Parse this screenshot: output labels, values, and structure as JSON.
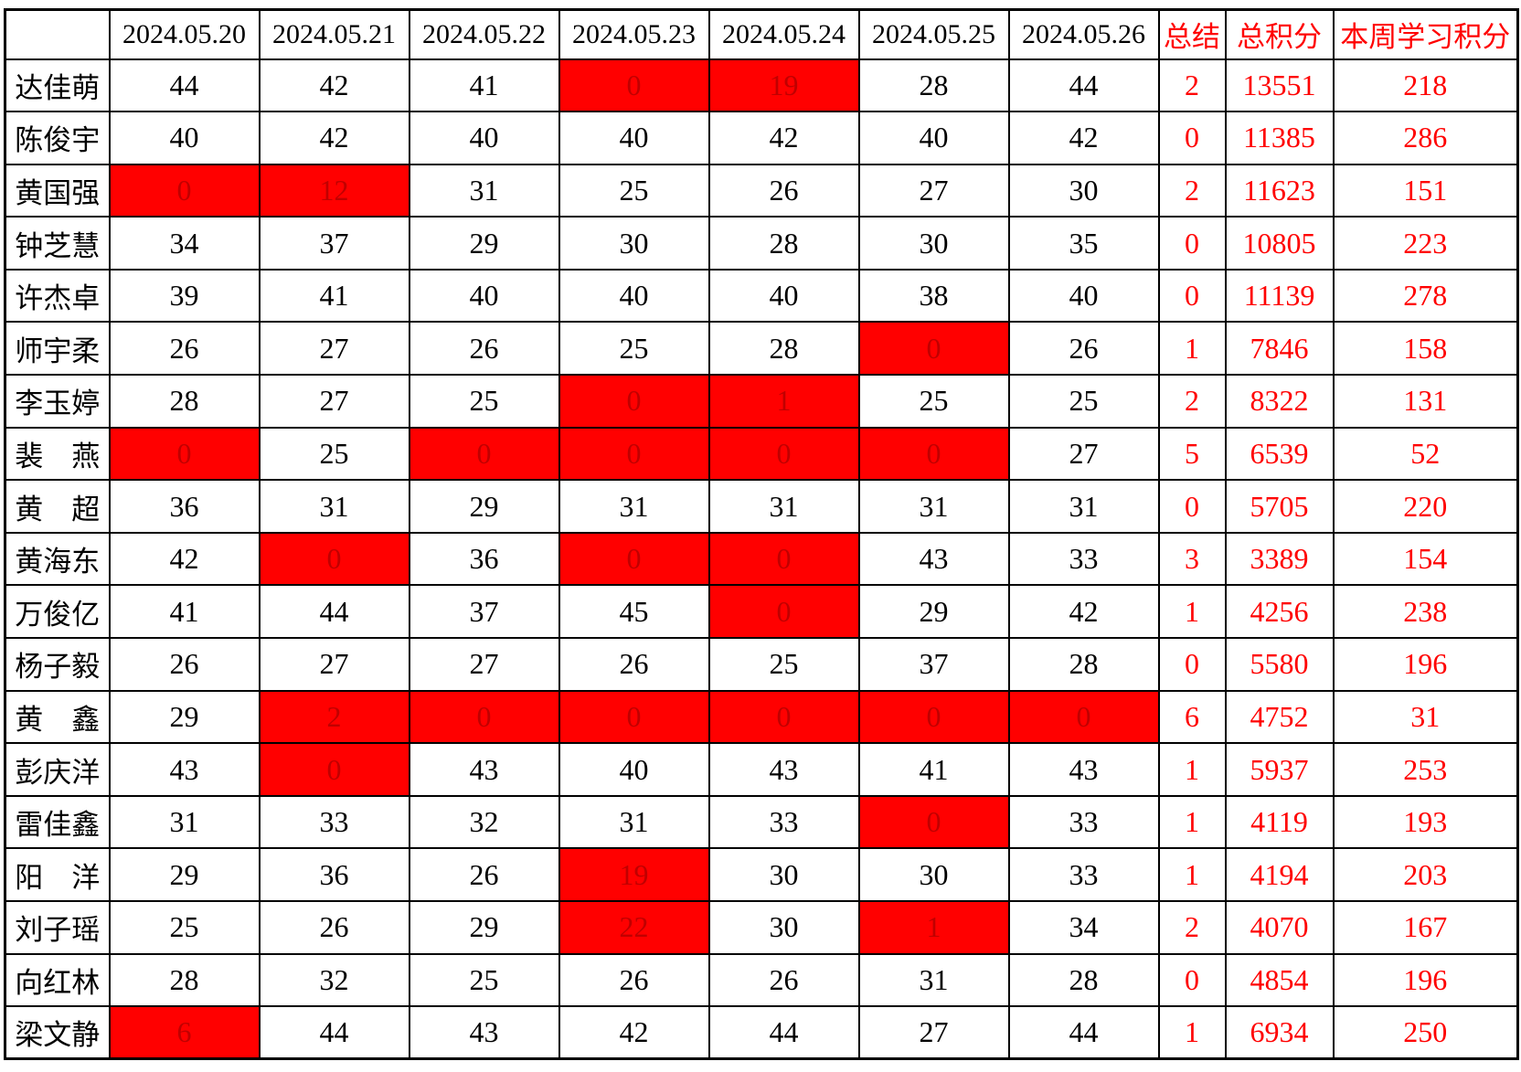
{
  "header": {
    "corner_label": "",
    "dates": [
      "2024.05.20",
      "2024.05.21",
      "2024.05.22",
      "2024.05.23",
      "2024.05.24",
      "2024.05.25",
      "2024.05.26"
    ],
    "summary_label": "总结",
    "total_label": "总积分",
    "week_label": "本周学习积分"
  },
  "colors": {
    "flag_fill": "#ff0000",
    "flag_digit": "#c00000",
    "accent_red": "#ff0000",
    "border": "#000000",
    "background": "#ffffff"
  },
  "rows": [
    {
      "name": "达佳萌",
      "scores": [
        {
          "v": "44"
        },
        {
          "v": "42"
        },
        {
          "v": "41"
        },
        {
          "v": "0",
          "red": true
        },
        {
          "v": "19",
          "red": true
        },
        {
          "v": "28"
        },
        {
          "v": "44"
        }
      ],
      "summary": "2",
      "total": "13551",
      "week": "218"
    },
    {
      "name": "陈俊宇",
      "scores": [
        {
          "v": "40"
        },
        {
          "v": "42"
        },
        {
          "v": "40"
        },
        {
          "v": "40"
        },
        {
          "v": "42"
        },
        {
          "v": "40"
        },
        {
          "v": "42"
        }
      ],
      "summary": "0",
      "total": "11385",
      "week": "286"
    },
    {
      "name": "黄国强",
      "scores": [
        {
          "v": "0",
          "red": true
        },
        {
          "v": "12",
          "red": true
        },
        {
          "v": "31"
        },
        {
          "v": "25"
        },
        {
          "v": "26"
        },
        {
          "v": "27"
        },
        {
          "v": "30"
        }
      ],
      "summary": "2",
      "total": "11623",
      "week": "151"
    },
    {
      "name": "钟芝慧",
      "scores": [
        {
          "v": "34"
        },
        {
          "v": "37"
        },
        {
          "v": "29"
        },
        {
          "v": "30"
        },
        {
          "v": "28"
        },
        {
          "v": "30"
        },
        {
          "v": "35"
        }
      ],
      "summary": "0",
      "total": "10805",
      "week": "223"
    },
    {
      "name": "许杰卓",
      "scores": [
        {
          "v": "39"
        },
        {
          "v": "41"
        },
        {
          "v": "40"
        },
        {
          "v": "40"
        },
        {
          "v": "40"
        },
        {
          "v": "38"
        },
        {
          "v": "40"
        }
      ],
      "summary": "0",
      "total": "11139",
      "week": "278"
    },
    {
      "name": "师宇柔",
      "scores": [
        {
          "v": "26"
        },
        {
          "v": "27"
        },
        {
          "v": "26"
        },
        {
          "v": "25"
        },
        {
          "v": "28"
        },
        {
          "v": "0",
          "red": true
        },
        {
          "v": "26"
        }
      ],
      "summary": "1",
      "total": "7846",
      "week": "158"
    },
    {
      "name": "李玉婷",
      "scores": [
        {
          "v": "28"
        },
        {
          "v": "27"
        },
        {
          "v": "25"
        },
        {
          "v": "0",
          "red": true
        },
        {
          "v": "1",
          "red": true
        },
        {
          "v": "25"
        },
        {
          "v": "25"
        }
      ],
      "summary": "2",
      "total": "8322",
      "week": "131"
    },
    {
      "name": "裴　燕",
      "scores": [
        {
          "v": "0",
          "red": true
        },
        {
          "v": "25"
        },
        {
          "v": "0",
          "red": true
        },
        {
          "v": "0",
          "red": true
        },
        {
          "v": "0",
          "red": true
        },
        {
          "v": "0",
          "red": true
        },
        {
          "v": "27"
        }
      ],
      "summary": "5",
      "total": "6539",
      "week": "52"
    },
    {
      "name": "黄　超",
      "scores": [
        {
          "v": "36"
        },
        {
          "v": "31"
        },
        {
          "v": "29"
        },
        {
          "v": "31"
        },
        {
          "v": "31"
        },
        {
          "v": "31"
        },
        {
          "v": "31"
        }
      ],
      "summary": "0",
      "total": "5705",
      "week": "220"
    },
    {
      "name": "黄海东",
      "scores": [
        {
          "v": "42"
        },
        {
          "v": "0",
          "red": true
        },
        {
          "v": "36"
        },
        {
          "v": "0",
          "red": true
        },
        {
          "v": "0",
          "red": true
        },
        {
          "v": "43"
        },
        {
          "v": "33"
        }
      ],
      "summary": "3",
      "total": "3389",
      "week": "154"
    },
    {
      "name": "万俊亿",
      "scores": [
        {
          "v": "41"
        },
        {
          "v": "44"
        },
        {
          "v": "37"
        },
        {
          "v": "45"
        },
        {
          "v": "0",
          "red": true
        },
        {
          "v": "29"
        },
        {
          "v": "42"
        }
      ],
      "summary": "1",
      "total": "4256",
      "week": "238"
    },
    {
      "name": "杨子毅",
      "scores": [
        {
          "v": "26"
        },
        {
          "v": "27"
        },
        {
          "v": "27"
        },
        {
          "v": "26"
        },
        {
          "v": "25"
        },
        {
          "v": "37"
        },
        {
          "v": "28"
        }
      ],
      "summary": "0",
      "total": "5580",
      "week": "196"
    },
    {
      "name": "黄　鑫",
      "scores": [
        {
          "v": "29"
        },
        {
          "v": "2",
          "red": true
        },
        {
          "v": "0",
          "red": true
        },
        {
          "v": "0",
          "red": true
        },
        {
          "v": "0",
          "red": true
        },
        {
          "v": "0",
          "red": true
        },
        {
          "v": "0",
          "red": true
        }
      ],
      "summary": "6",
      "total": "4752",
      "week": "31"
    },
    {
      "name": "彭庆洋",
      "scores": [
        {
          "v": "43"
        },
        {
          "v": "0",
          "red": true
        },
        {
          "v": "43"
        },
        {
          "v": "40"
        },
        {
          "v": "43"
        },
        {
          "v": "41"
        },
        {
          "v": "43"
        }
      ],
      "summary": "1",
      "total": "5937",
      "week": "253"
    },
    {
      "name": "雷佳鑫",
      "scores": [
        {
          "v": "31"
        },
        {
          "v": "33"
        },
        {
          "v": "32"
        },
        {
          "v": "31"
        },
        {
          "v": "33"
        },
        {
          "v": "0",
          "red": true
        },
        {
          "v": "33"
        }
      ],
      "summary": "1",
      "total": "4119",
      "week": "193"
    },
    {
      "name": "阳　洋",
      "scores": [
        {
          "v": "29"
        },
        {
          "v": "36"
        },
        {
          "v": "26"
        },
        {
          "v": "19",
          "red": true
        },
        {
          "v": "30"
        },
        {
          "v": "30"
        },
        {
          "v": "33"
        }
      ],
      "summary": "1",
      "total": "4194",
      "week": "203"
    },
    {
      "name": "刘子瑶",
      "scores": [
        {
          "v": "25"
        },
        {
          "v": "26"
        },
        {
          "v": "29"
        },
        {
          "v": "22",
          "red": true
        },
        {
          "v": "30"
        },
        {
          "v": "1",
          "red": true
        },
        {
          "v": "34"
        }
      ],
      "summary": "2",
      "total": "4070",
      "week": "167"
    },
    {
      "name": "向红林",
      "scores": [
        {
          "v": "28"
        },
        {
          "v": "32"
        },
        {
          "v": "25"
        },
        {
          "v": "26"
        },
        {
          "v": "26"
        },
        {
          "v": "31"
        },
        {
          "v": "28"
        }
      ],
      "summary": "0",
      "total": "4854",
      "week": "196"
    },
    {
      "name": "梁文静",
      "scores": [
        {
          "v": "6",
          "red": true
        },
        {
          "v": "44"
        },
        {
          "v": "43"
        },
        {
          "v": "42"
        },
        {
          "v": "44"
        },
        {
          "v": "27"
        },
        {
          "v": "44"
        }
      ],
      "summary": "1",
      "total": "6934",
      "week": "250"
    }
  ]
}
